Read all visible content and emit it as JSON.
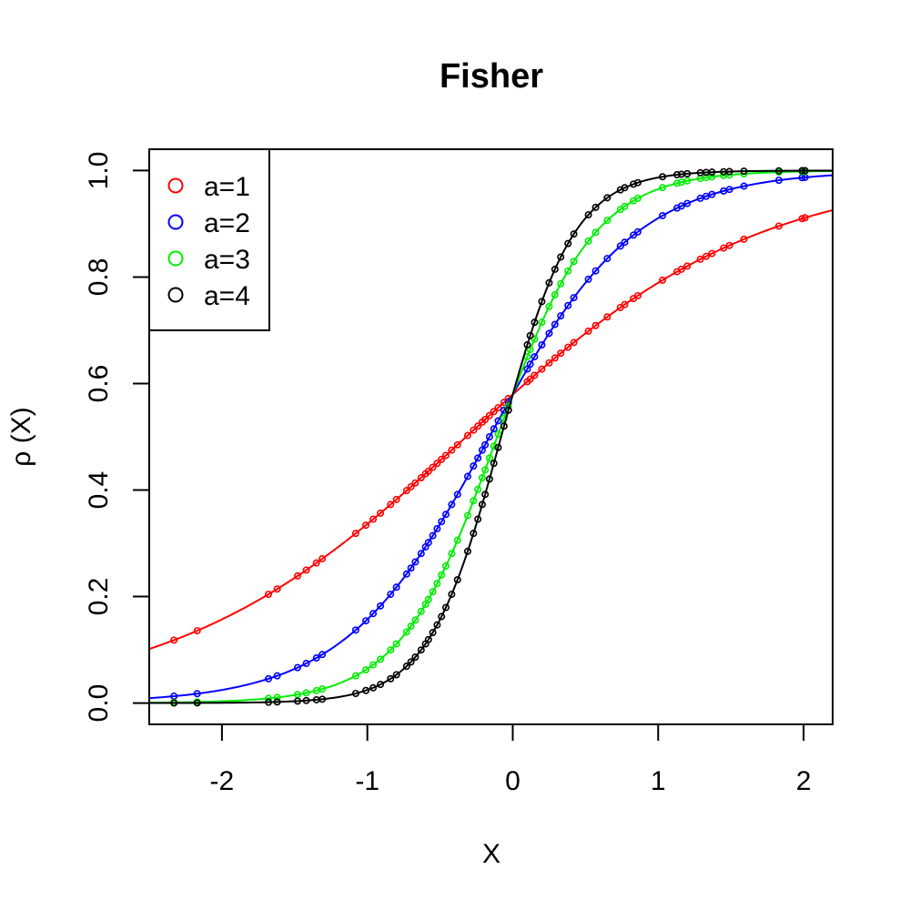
{
  "chart_data": {
    "type": "line",
    "title": "Fisher",
    "xlabel": "X",
    "ylabel": "ρ (X)",
    "xlim": [
      -2.5,
      2.2
    ],
    "ylim": [
      -0.04,
      1.04
    ],
    "x_ticks": [
      -2,
      -1,
      0,
      1,
      2
    ],
    "x_tick_labels": [
      "-2",
      "-1",
      "0",
      "1",
      "2"
    ],
    "y_ticks": [
      0.0,
      0.2,
      0.4,
      0.6,
      0.8,
      1.0
    ],
    "y_tick_labels": [
      "0.0",
      "0.2",
      "0.4",
      "0.6",
      "0.8",
      "1.0"
    ],
    "grid": false,
    "legend_position": "top-left",
    "markers": "open-circle",
    "sample_x": [
      -2.33,
      -2.17,
      -1.68,
      -1.62,
      -1.48,
      -1.42,
      -1.35,
      -1.31,
      -1.08,
      -1.01,
      -0.96,
      -0.91,
      -0.84,
      -0.8,
      -0.73,
      -0.7,
      -0.67,
      -0.63,
      -0.6,
      -0.58,
      -0.55,
      -0.52,
      -0.49,
      -0.46,
      -0.42,
      -0.38,
      -0.31,
      -0.27,
      -0.24,
      -0.21,
      -0.19,
      -0.16,
      -0.13,
      -0.1,
      -0.06,
      -0.03,
      0.1,
      0.12,
      0.15,
      0.2,
      0.25,
      0.29,
      0.33,
      0.38,
      0.42,
      0.52,
      0.57,
      0.65,
      0.74,
      0.77,
      0.83,
      0.86,
      1.03,
      1.13,
      1.16,
      1.2,
      1.29,
      1.33,
      1.37,
      1.45,
      1.49,
      1.59,
      1.83,
      1.99,
      2.01
    ],
    "series": [
      {
        "name": "a=1",
        "color": "#ff0000",
        "a": 1,
        "y_at": {
          "-2.5": 0.1,
          "-2.0": 0.16,
          "-1.0": 0.33,
          "0.0": 0.58,
          "1.0": 0.8,
          "2.0": 0.91,
          "2.2": 0.925
        }
      },
      {
        "name": "a=2",
        "color": "#0000ff",
        "a": 2,
        "y_at": {
          "-2.5": 0.01,
          "-2.0": 0.025,
          "-1.0": 0.15,
          "0.0": 0.58,
          "1.0": 0.91,
          "2.0": 0.985,
          "2.2": 0.99
        }
      },
      {
        "name": "a=3",
        "color": "#00ee00",
        "a": 3,
        "y_at": {
          "-2.5": 0.0,
          "-2.0": 0.002,
          "-1.0": 0.055,
          "0.0": 0.58,
          "1.0": 0.975,
          "2.0": 1.0,
          "2.2": 1.0
        }
      },
      {
        "name": "a=4",
        "color": "#000000",
        "a": 4,
        "y_at": {
          "-2.5": 0.0,
          "-2.0": 0.0,
          "-1.0": 0.018,
          "0.0": 0.58,
          "1.0": 0.99,
          "2.0": 1.0,
          "2.2": 1.0
        }
      }
    ]
  }
}
